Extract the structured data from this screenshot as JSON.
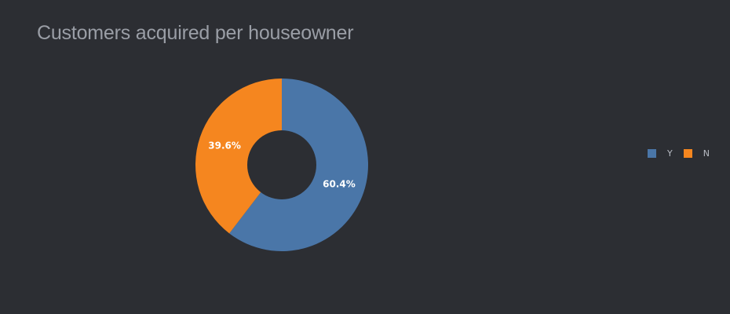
{
  "title": "Customers acquired per houseowner",
  "colors": {
    "background": "#2c2e33",
    "Y": "#4a76a8",
    "N": "#f5861f",
    "hole": "#2c2e33"
  },
  "chart_data": {
    "type": "pie",
    "title": "Customers acquired per houseowner",
    "labels": [
      "Y",
      "N"
    ],
    "values": [
      60.4,
      39.6
    ],
    "percent_labels": [
      "60.4%",
      "39.6%"
    ],
    "colors": [
      "#4a76a8",
      "#f5861f"
    ],
    "donut": true,
    "legend": "right",
    "legend_entries": [
      "Y",
      "N"
    ]
  }
}
